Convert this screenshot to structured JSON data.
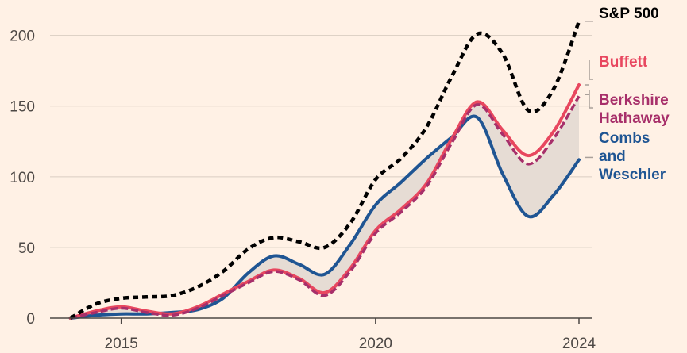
{
  "chart_data": {
    "type": "line",
    "x": [
      2014,
      2014.5,
      2015,
      2015.5,
      2016,
      2016.5,
      2017,
      2017.5,
      2018,
      2018.5,
      2019,
      2019.5,
      2020,
      2020.5,
      2021,
      2021.5,
      2022,
      2022.5,
      2023,
      2023.5,
      2024
    ],
    "series": [
      {
        "name": "S&P 500",
        "color": "#000000",
        "style": "dotted",
        "values": [
          0,
          10,
          14,
          15,
          16,
          22,
          33,
          49,
          57,
          54,
          50,
          67,
          98,
          113,
          135,
          171,
          201,
          187,
          147,
          162,
          210
        ]
      },
      {
        "name": "Buffett",
        "color": "#E8475F",
        "style": "solid",
        "values": [
          0,
          5,
          8,
          5,
          3,
          8,
          17,
          26,
          34,
          28,
          18,
          35,
          62,
          77,
          95,
          127,
          153,
          133,
          115,
          132,
          165
        ]
      },
      {
        "name": "Berkshire Hathaway",
        "color": "#A72F6A",
        "style": "dashed",
        "values": [
          0,
          4,
          7,
          4,
          2,
          7,
          16,
          25,
          33,
          27,
          16,
          33,
          60,
          75,
          93,
          124,
          151,
          130,
          109,
          127,
          157
        ]
      },
      {
        "name": "Combs and Weschler",
        "color": "#1F5593",
        "style": "solid",
        "values": [
          0,
          2,
          3,
          3,
          4,
          6,
          14,
          32,
          44,
          38,
          31,
          52,
          80,
          96,
          113,
          128,
          142,
          102,
          72,
          87,
          112
        ]
      }
    ],
    "x_ticks": [
      "2015",
      "2020",
      "2024"
    ],
    "x_tick_values": [
      2015,
      2020,
      2024
    ],
    "y_ticks": [
      "0",
      "50",
      "100",
      "150",
      "200"
    ],
    "y_tick_values": [
      0,
      50,
      100,
      150,
      200
    ],
    "xlim": [
      2013.6,
      2024.25
    ],
    "ylim": [
      0,
      220
    ],
    "shaded_band": {
      "between": [
        "Berkshire Hathaway",
        "Combs and Weschler"
      ],
      "color": "#e6dcd4"
    },
    "legend": {
      "placement": "right",
      "entries": [
        {
          "series": "S&P 500",
          "lines": [
            "S&P 500"
          ],
          "color": "#000000"
        },
        {
          "series": "Buffett",
          "lines": [
            "Buffett"
          ],
          "color": "#E8475F"
        },
        {
          "series": "Berkshire Hathaway",
          "lines": [
            "Berkshire",
            "Hathaway"
          ],
          "color": "#A72F6A"
        },
        {
          "series": "Combs and Weschler",
          "lines": [
            "Combs",
            "and",
            "Weschler"
          ],
          "color": "#1F5593"
        }
      ]
    },
    "grid": true,
    "title": "",
    "xlabel": "",
    "ylabel": ""
  }
}
